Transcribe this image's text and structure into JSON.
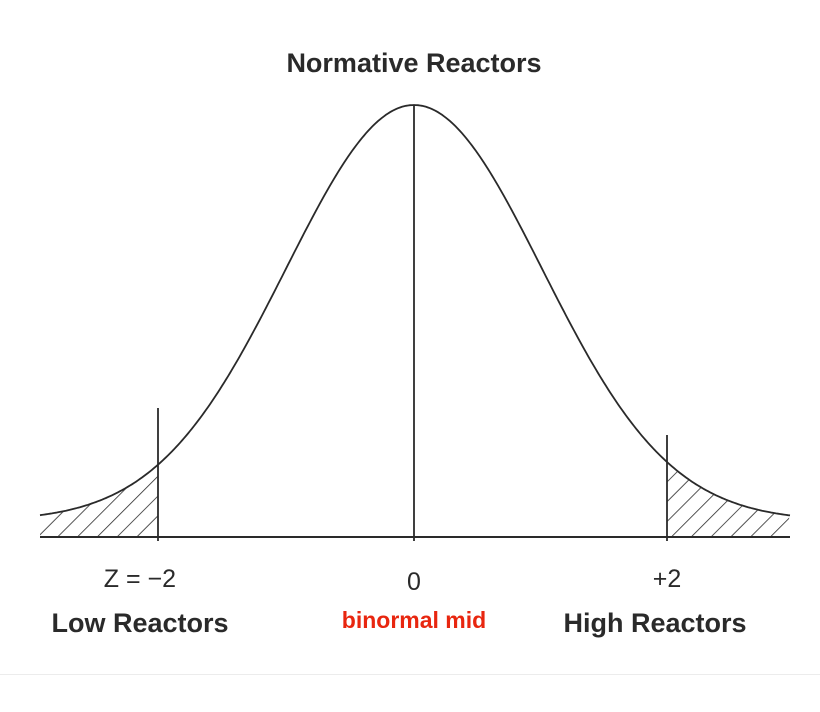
{
  "title": "Normative Reactors",
  "ticks": {
    "low": "Z = −2",
    "mid": "0",
    "high": "+2"
  },
  "groups": {
    "low": "Low Reactors",
    "high": "High Reactors"
  },
  "annotation": {
    "text": "binormal mid",
    "color": "#e8260f"
  },
  "colors": {
    "ink": "#2a2a2a"
  }
}
